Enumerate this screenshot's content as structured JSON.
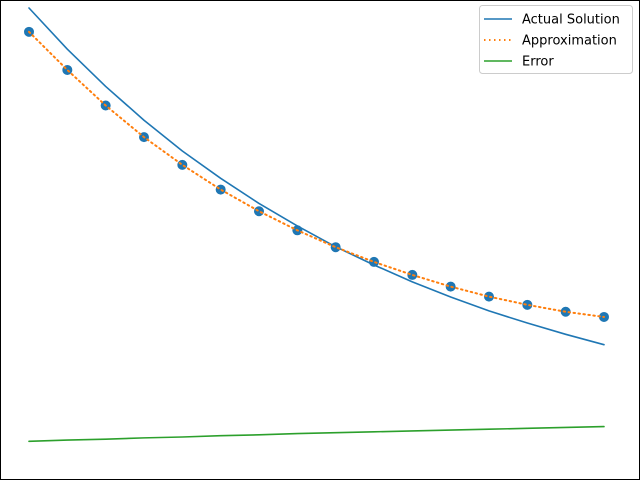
{
  "chart_data": {
    "type": "line",
    "title": "",
    "xlabel": "",
    "ylabel": "",
    "axes_visible": false,
    "grid": false,
    "legend_position": "top-right",
    "x": [
      0.0,
      0.1,
      0.2,
      0.3,
      0.4,
      0.5,
      0.6,
      0.7,
      0.8,
      0.9,
      1.0,
      1.1,
      1.2,
      1.3,
      1.4,
      1.5
    ],
    "xlim": [
      0.0,
      1.5
    ],
    "ylim": [
      -0.05,
      1.0
    ],
    "series": [
      {
        "name": "Actual Solution",
        "style": "solid",
        "color": "#1f77b4",
        "values": [
          1.0,
          0.905,
          0.819,
          0.741,
          0.67,
          0.607,
          0.549,
          0.497,
          0.449,
          0.407,
          0.368,
          0.333,
          0.301,
          0.273,
          0.247,
          0.223
        ]
      },
      {
        "name": "Approximation",
        "style": "dotted",
        "color": "#ff7f0e",
        "marker_color": "#1f77b4",
        "markers": true,
        "values": [
          0.945,
          0.857,
          0.775,
          0.702,
          0.638,
          0.581,
          0.531,
          0.487,
          0.448,
          0.414,
          0.384,
          0.357,
          0.334,
          0.315,
          0.299,
          0.287
        ]
      },
      {
        "name": "Error",
        "style": "solid",
        "color": "#2ca02c",
        "values": [
          0.0,
          0.003,
          0.005,
          0.008,
          0.01,
          0.013,
          0.015,
          0.018,
          0.02,
          0.022,
          0.024,
          0.026,
          0.028,
          0.03,
          0.032,
          0.034
        ]
      }
    ]
  }
}
